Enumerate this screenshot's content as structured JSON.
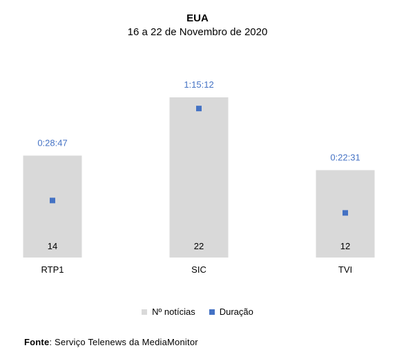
{
  "chart_data": {
    "type": "bar",
    "title": "EUA",
    "subtitle": "16 a 22 de Novembro de 2020",
    "categories": [
      "RTP1",
      "SIC",
      "TVI"
    ],
    "series": [
      {
        "name": "Nº notícias",
        "type": "bar",
        "color": "#d9d9d9",
        "values": [
          14,
          22,
          12
        ]
      },
      {
        "name": "Duração",
        "type": "scatter",
        "color": "#4472c4",
        "values": [
          1727,
          4512,
          1351
        ],
        "labels": [
          "0:28:47",
          "1:15:12",
          "0:22:31"
        ]
      }
    ],
    "legend": "bottom",
    "grid": false,
    "ylim_bars": [
      0,
      22
    ],
    "ylim_duration": [
      0,
      4850
    ]
  },
  "source": {
    "label": "Fonte",
    "text": ": Serviço Telenews da MediaMonitor"
  }
}
